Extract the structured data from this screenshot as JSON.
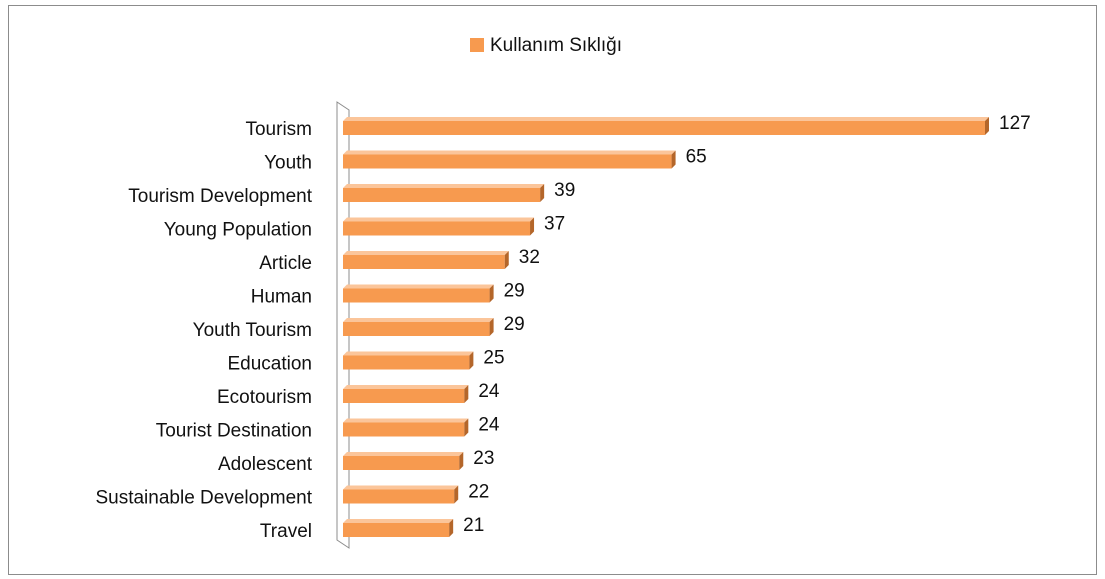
{
  "chart_data": {
    "type": "bar",
    "orientation": "horizontal",
    "categories": [
      "Tourism",
      "Youth",
      "Tourism Development",
      "Young Population",
      "Article",
      "Human",
      "Youth Tourism",
      "Education",
      "Ecotourism",
      "Tourist Destination",
      "Adolescent",
      "Sustainable Development",
      "Travel"
    ],
    "series": [
      {
        "name": "Kullanım Sıklığı",
        "color": "#f79a4f",
        "values": [
          127,
          65,
          39,
          37,
          32,
          29,
          29,
          25,
          24,
          24,
          23,
          22,
          21
        ]
      }
    ],
    "legend": "top"
  }
}
